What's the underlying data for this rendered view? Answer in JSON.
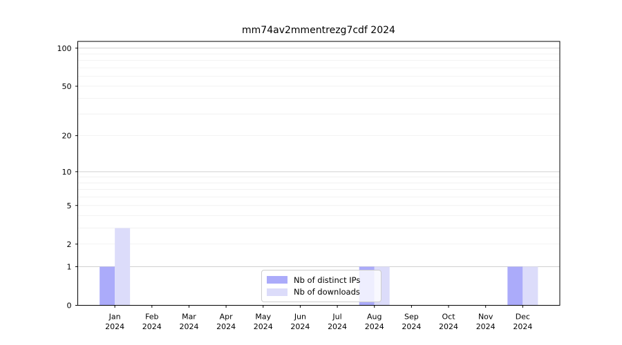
{
  "chart_data": {
    "type": "bar",
    "title": "mm74av2mmentrezg7cdf 2024",
    "x_axis": {
      "categories": [
        "Jan 2024",
        "Feb 2024",
        "Mar 2024",
        "Apr 2024",
        "May 2024",
        "Jun 2024",
        "Jul 2024",
        "Aug 2024",
        "Sep 2024",
        "Oct 2024",
        "Nov 2024",
        "Dec 2024"
      ]
    },
    "y_axis": {
      "scale": "log1p",
      "ticks": [
        0,
        1,
        2,
        5,
        10,
        20,
        50,
        100
      ],
      "ylim": [
        0,
        113
      ]
    },
    "grid": {
      "major": [
        1,
        10,
        100
      ],
      "minor": [
        2,
        3,
        4,
        5,
        6,
        7,
        8,
        9,
        20,
        30,
        40,
        50,
        60,
        70,
        80,
        90
      ],
      "major_color": "#d0d0d0",
      "minor_color": "#efefef"
    },
    "series": [
      {
        "name": "Nb of distinct IPs",
        "color": "#ababfa",
        "values": [
          1,
          0,
          0,
          0,
          0,
          0,
          0,
          1,
          0,
          0,
          0,
          1
        ]
      },
      {
        "name": "Nb of downloads",
        "color": "#dcdcfa",
        "values": [
          3,
          0,
          0,
          0,
          0,
          0,
          0,
          1,
          0,
          0,
          0,
          1
        ]
      }
    ],
    "legend_position": "lower center"
  },
  "legend": {
    "items": [
      {
        "label": "Nb of distinct IPs",
        "color": "#ababfa"
      },
      {
        "label": "Nb of downloads",
        "color": "#dcdcfa"
      }
    ]
  }
}
